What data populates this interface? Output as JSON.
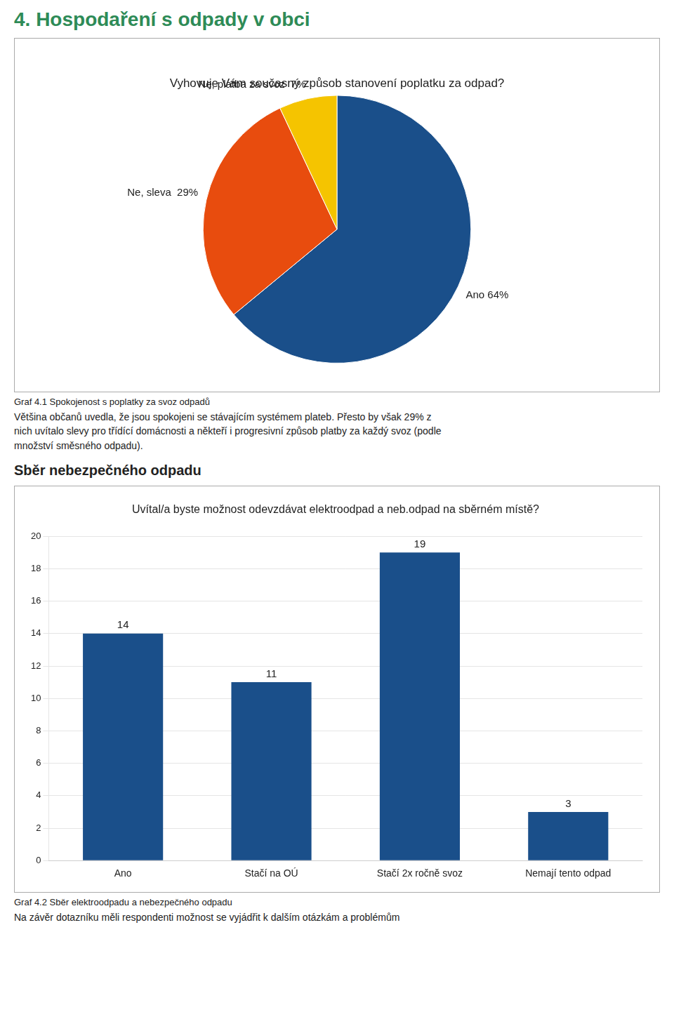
{
  "chart_data": [
    {
      "type": "pie",
      "title": "Vyhovuje Vám současný způsob stanovení poplatku za odpad?",
      "categories": [
        "Ano 64%",
        "Ne, sleva  29%",
        "Ne, platba za svoz  7%"
      ],
      "values": [
        64,
        29,
        7
      ],
      "colors": [
        "#1a4f8a",
        "#e84c0e",
        "#f5c400"
      ],
      "annotations": [
        "4. Hospodaření s odpady v obci",
        "Graf 4.1 Spokojenost s poplatky za svoz odpadů",
        "Většina občanů uvedla, že jsou spokojeni se stávajícím systémem plateb. Přesto by však 29% z",
        "nich uvítalo slevy pro třídící domácnosti a někteří i progresivní způsob platby za každý svoz (podle",
        "množství směsného odpadu)."
      ]
    },
    {
      "type": "bar",
      "title": "Uvítal/a byste možnost odevzdávat elektroodpad a neb.odpad na sběrném místě?",
      "categories": [
        "Ano",
        "Stačí na OÚ",
        "Stačí 2x ročně svoz",
        "Nemají tento odpad"
      ],
      "values": [
        14,
        11,
        19,
        3
      ],
      "color": "#1a4f8a",
      "ylim": [
        0,
        20
      ],
      "yticks": [
        0,
        2,
        4,
        6,
        8,
        10,
        12,
        14,
        16,
        18,
        20
      ],
      "grid": true,
      "data_labels": true,
      "annotations": [
        "Sběr nebezpečného odpadu",
        "Graf 4.2 Sběr elektroodpadu a nebezpečného odpadu",
        "Na závěr dotazníku měli respondenti možnost se vyjádřit k dalším otázkám a problémům"
      ]
    }
  ]
}
